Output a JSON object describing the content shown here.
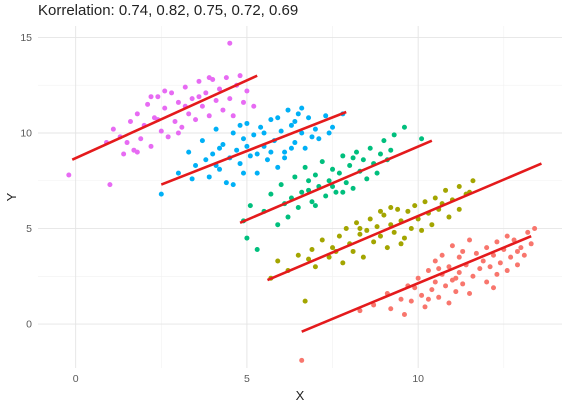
{
  "chart_data": {
    "type": "scatter",
    "title": "Korrelation: 0.74, 0.82, 0.75, 0.72, 0.69",
    "xlabel": "X",
    "ylabel": "Y",
    "xlim": [
      -1.1,
      14.2
    ],
    "ylim": [
      -2.3,
      15.6
    ],
    "x_ticks": [
      0,
      5,
      10
    ],
    "y_ticks": [
      0,
      5,
      10,
      15
    ],
    "grid": true,
    "legend": "none",
    "fit_line_color": "#e41a1c",
    "series": [
      {
        "color": "#f8766d",
        "fit": {
          "x": [
            6.6,
            13.3
          ],
          "y": [
            -0.4,
            4.6
          ]
        },
        "points": [
          [
            6.6,
            -1.9
          ],
          [
            8.3,
            0.7
          ],
          [
            8.7,
            1.0
          ],
          [
            9.1,
            1.6
          ],
          [
            9.2,
            0.8
          ],
          [
            9.5,
            1.3
          ],
          [
            9.6,
            0.5
          ],
          [
            9.7,
            2.0
          ],
          [
            9.8,
            1.2
          ],
          [
            10.0,
            2.4
          ],
          [
            10.1,
            1.5
          ],
          [
            10.2,
            0.9
          ],
          [
            10.3,
            2.8
          ],
          [
            10.4,
            1.8
          ],
          [
            10.5,
            2.2
          ],
          [
            10.5,
            3.3
          ],
          [
            10.6,
            1.4
          ],
          [
            10.7,
            2.6
          ],
          [
            10.7,
            3.6
          ],
          [
            10.8,
            2.0
          ],
          [
            10.9,
            1.1
          ],
          [
            10.9,
            3.0
          ],
          [
            11.0,
            2.3
          ],
          [
            11.0,
            4.1
          ],
          [
            11.1,
            1.7
          ],
          [
            11.2,
            2.7
          ],
          [
            11.2,
            3.5
          ],
          [
            11.3,
            2.1
          ],
          [
            11.4,
            3.1
          ],
          [
            11.5,
            1.6
          ],
          [
            11.5,
            4.4
          ],
          [
            11.6,
            2.5
          ],
          [
            11.7,
            3.7
          ],
          [
            11.8,
            2.9
          ],
          [
            11.9,
            3.3
          ],
          [
            12.0,
            2.2
          ],
          [
            12.0,
            4.0
          ],
          [
            12.1,
            3.0
          ],
          [
            12.2,
            3.6
          ],
          [
            12.3,
            2.6
          ],
          [
            12.3,
            4.3
          ],
          [
            12.4,
            3.2
          ],
          [
            12.5,
            3.9
          ],
          [
            12.6,
            2.8
          ],
          [
            12.7,
            3.5
          ],
          [
            12.8,
            4.4
          ],
          [
            12.9,
            3.1
          ],
          [
            13.0,
            4.0
          ],
          [
            13.1,
            3.6
          ],
          [
            13.2,
            4.8
          ],
          [
            13.3,
            4.2
          ],
          [
            13.4,
            5.0
          ],
          [
            12.2,
            1.9
          ],
          [
            11.3,
            3.8
          ],
          [
            10.6,
            2.9
          ],
          [
            12.6,
            4.6
          ],
          [
            9.9,
            1.9
          ],
          [
            11.1,
            2.4
          ],
          [
            12.9,
            3.8
          ],
          [
            10.3,
            1.3
          ]
        ]
      },
      {
        "color": "#a3a500",
        "fit": {
          "x": [
            5.6,
            13.6
          ],
          "y": [
            2.3,
            8.4
          ]
        },
        "points": [
          [
            5.7,
            2.4
          ],
          [
            5.9,
            3.3
          ],
          [
            6.2,
            2.8
          ],
          [
            6.5,
            3.6
          ],
          [
            6.7,
            1.2
          ],
          [
            6.9,
            3.9
          ],
          [
            7.0,
            3.0
          ],
          [
            7.2,
            4.4
          ],
          [
            7.4,
            3.5
          ],
          [
            7.5,
            4.0
          ],
          [
            7.7,
            4.6
          ],
          [
            7.8,
            3.2
          ],
          [
            7.9,
            5.0
          ],
          [
            8.0,
            4.2
          ],
          [
            8.1,
            3.8
          ],
          [
            8.2,
            5.3
          ],
          [
            8.3,
            4.7
          ],
          [
            8.4,
            3.5
          ],
          [
            8.5,
            4.9
          ],
          [
            8.6,
            5.5
          ],
          [
            8.7,
            4.3
          ],
          [
            8.8,
            5.1
          ],
          [
            8.9,
            4.6
          ],
          [
            9.0,
            5.7
          ],
          [
            9.1,
            4.0
          ],
          [
            9.2,
            5.2
          ],
          [
            9.3,
            4.8
          ],
          [
            9.4,
            6.0
          ],
          [
            9.5,
            5.4
          ],
          [
            9.6,
            4.5
          ],
          [
            9.7,
            5.9
          ],
          [
            9.8,
            5.0
          ],
          [
            9.9,
            6.2
          ],
          [
            10.0,
            5.5
          ],
          [
            10.1,
            4.9
          ],
          [
            10.2,
            6.4
          ],
          [
            10.3,
            5.8
          ],
          [
            10.5,
            6.6
          ],
          [
            10.6,
            6.0
          ],
          [
            10.8,
            7.0
          ],
          [
            11.0,
            6.5
          ],
          [
            11.2,
            7.2
          ],
          [
            11.4,
            6.8
          ],
          [
            11.6,
            7.5
          ],
          [
            11.2,
            6.0
          ],
          [
            10.4,
            5.2
          ],
          [
            9.5,
            4.2
          ],
          [
            8.9,
            5.9
          ],
          [
            7.6,
            3.8
          ],
          [
            6.8,
            3.4
          ],
          [
            10.9,
            5.6
          ],
          [
            8.3,
            5.0
          ],
          [
            9.2,
            6.1
          ],
          [
            10.7,
            6.3
          ],
          [
            11.5,
            6.9
          ]
        ]
      },
      {
        "color": "#00bf7d",
        "fit": {
          "x": [
            4.8,
            10.4
          ],
          "y": [
            5.3,
            9.6
          ]
        },
        "points": [
          [
            4.9,
            5.4
          ],
          [
            5.0,
            4.5
          ],
          [
            5.1,
            6.2
          ],
          [
            5.3,
            3.9
          ],
          [
            5.5,
            5.9
          ],
          [
            5.7,
            6.8
          ],
          [
            5.9,
            5.2
          ],
          [
            6.0,
            7.3
          ],
          [
            6.1,
            6.3
          ],
          [
            6.2,
            5.6
          ],
          [
            6.4,
            7.7
          ],
          [
            6.5,
            6.1
          ],
          [
            6.6,
            6.9
          ],
          [
            6.7,
            8.2
          ],
          [
            6.8,
            7.0
          ],
          [
            6.9,
            6.4
          ],
          [
            7.0,
            7.8
          ],
          [
            7.1,
            7.2
          ],
          [
            7.2,
            8.5
          ],
          [
            7.3,
            6.7
          ],
          [
            7.4,
            7.5
          ],
          [
            7.5,
            8.1
          ],
          [
            7.6,
            6.9
          ],
          [
            7.7,
            7.9
          ],
          [
            7.8,
            8.8
          ],
          [
            7.9,
            7.4
          ],
          [
            8.0,
            8.3
          ],
          [
            8.1,
            7.1
          ],
          [
            8.2,
            9.0
          ],
          [
            8.3,
            8.0
          ],
          [
            8.4,
            8.6
          ],
          [
            8.5,
            7.6
          ],
          [
            8.6,
            9.2
          ],
          [
            8.7,
            8.4
          ],
          [
            8.8,
            7.9
          ],
          [
            9.0,
            9.6
          ],
          [
            9.1,
            8.6
          ],
          [
            9.3,
            9.9
          ],
          [
            9.6,
            10.3
          ],
          [
            10.1,
            9.7
          ],
          [
            7.0,
            6.2
          ],
          [
            6.3,
            6.6
          ],
          [
            8.9,
            8.9
          ],
          [
            7.5,
            7.2
          ],
          [
            8.1,
            8.7
          ],
          [
            6.8,
            7.5
          ],
          [
            7.8,
            6.9
          ],
          [
            9.2,
            9.1
          ]
        ]
      },
      {
        "color": "#00b0f6",
        "fit": {
          "x": [
            2.5,
            7.9
          ],
          "y": [
            7.3,
            11.1
          ]
        },
        "points": [
          [
            2.5,
            6.8
          ],
          [
            3.0,
            7.9
          ],
          [
            3.3,
            9.0
          ],
          [
            3.5,
            8.3
          ],
          [
            3.7,
            9.6
          ],
          [
            3.9,
            7.7
          ],
          [
            4.0,
            8.9
          ],
          [
            4.1,
            10.2
          ],
          [
            4.2,
            8.1
          ],
          [
            4.3,
            9.4
          ],
          [
            4.4,
            7.4
          ],
          [
            4.5,
            8.7
          ],
          [
            4.6,
            10.0
          ],
          [
            4.7,
            9.1
          ],
          [
            4.8,
            8.4
          ],
          [
            4.9,
            9.7
          ],
          [
            5.0,
            10.5
          ],
          [
            5.1,
            8.8
          ],
          [
            5.2,
            9.9
          ],
          [
            5.3,
            7.9
          ],
          [
            5.4,
            10.3
          ],
          [
            5.5,
            9.3
          ],
          [
            5.6,
            8.6
          ],
          [
            5.7,
            10.7
          ],
          [
            5.8,
            9.6
          ],
          [
            5.9,
            8.2
          ],
          [
            6.0,
            10.1
          ],
          [
            6.1,
            9.0
          ],
          [
            6.2,
            11.2
          ],
          [
            6.3,
            10.4
          ],
          [
            6.4,
            9.5
          ],
          [
            6.5,
            11.0
          ],
          [
            6.6,
            10.0
          ],
          [
            6.7,
            9.2
          ],
          [
            6.8,
            10.8
          ],
          [
            7.0,
            10.2
          ],
          [
            7.1,
            9.7
          ],
          [
            7.3,
            10.9
          ],
          [
            7.5,
            10.3
          ],
          [
            7.8,
            11.0
          ],
          [
            4.6,
            7.3
          ],
          [
            3.8,
            8.6
          ],
          [
            5.7,
            9.0
          ],
          [
            6.4,
            10.6
          ],
          [
            5.0,
            9.3
          ],
          [
            6.9,
            9.8
          ],
          [
            4.2,
            9.2
          ],
          [
            5.5,
            10.0
          ],
          [
            3.4,
            7.6
          ],
          [
            6.1,
            8.7
          ],
          [
            5.9,
            10.8
          ],
          [
            4.9,
            7.9
          ],
          [
            7.4,
            10.0
          ],
          [
            4.1,
            8.3
          ],
          [
            6.6,
            11.3
          ],
          [
            5.3,
            8.9
          ],
          [
            4.8,
            10.4
          ],
          [
            6.3,
            9.2
          ]
        ]
      },
      {
        "color": "#e76bf3",
        "fit": {
          "x": [
            -0.1,
            5.3
          ],
          "y": [
            8.6,
            13.0
          ]
        },
        "points": [
          [
            -0.2,
            7.8
          ],
          [
            0.9,
            9.5
          ],
          [
            1.0,
            7.3
          ],
          [
            1.1,
            10.2
          ],
          [
            1.3,
            9.8
          ],
          [
            1.4,
            8.9
          ],
          [
            1.5,
            9.5
          ],
          [
            1.6,
            10.6
          ],
          [
            1.7,
            9.1
          ],
          [
            1.8,
            11.0
          ],
          [
            1.9,
            9.7
          ],
          [
            2.0,
            10.4
          ],
          [
            2.1,
            11.5
          ],
          [
            2.2,
            9.3
          ],
          [
            2.3,
            10.8
          ],
          [
            2.4,
            11.9
          ],
          [
            2.5,
            10.1
          ],
          [
            2.6,
            11.3
          ],
          [
            2.7,
            9.8
          ],
          [
            2.8,
            12.1
          ],
          [
            2.9,
            10.6
          ],
          [
            3.0,
            11.6
          ],
          [
            3.1,
            10.3
          ],
          [
            3.2,
            12.4
          ],
          [
            3.3,
            11.0
          ],
          [
            3.4,
            11.8
          ],
          [
            3.5,
            10.7
          ],
          [
            3.6,
            12.7
          ],
          [
            3.7,
            11.4
          ],
          [
            3.8,
            12.1
          ],
          [
            3.9,
            10.9
          ],
          [
            4.0,
            12.8
          ],
          [
            4.1,
            11.7
          ],
          [
            4.2,
            12.3
          ],
          [
            4.3,
            11.2
          ],
          [
            4.4,
            12.9
          ],
          [
            4.5,
            11.8
          ],
          [
            4.5,
            14.7
          ],
          [
            4.7,
            12.5
          ],
          [
            4.9,
            11.6
          ],
          [
            5.0,
            12.2
          ],
          [
            5.2,
            11.4
          ],
          [
            2.2,
            11.9
          ],
          [
            3.0,
            10.0
          ],
          [
            3.6,
            11.9
          ],
          [
            4.8,
            13.0
          ],
          [
            2.6,
            12.2
          ],
          [
            3.9,
            12.9
          ],
          [
            3.2,
            11.4
          ],
          [
            1.8,
            9.0
          ],
          [
            2.4,
            10.7
          ],
          [
            4.6,
            10.9
          ]
        ]
      }
    ]
  }
}
